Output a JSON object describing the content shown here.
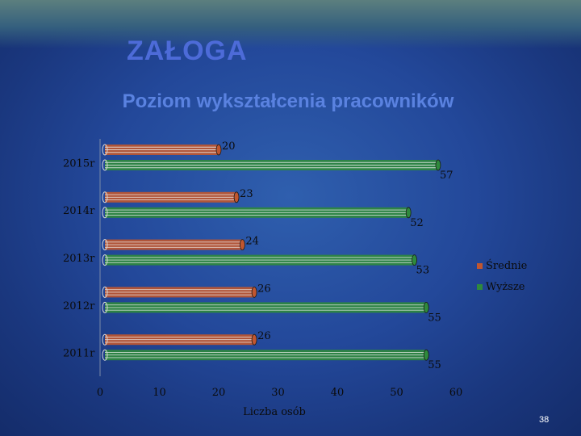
{
  "slide": {
    "title": "ZAŁOGA",
    "page_number": "38"
  },
  "colors": {
    "srednie": "#c0562f",
    "wyzsze": "#2f8a3c"
  },
  "chart_data": {
    "type": "bar",
    "orientation": "horizontal",
    "title": "Poziom wykształcenia pracowników",
    "xlabel": "Liczba osób",
    "ylabel": "",
    "categories": [
      "2015r",
      "2014r",
      "2013r",
      "2012r",
      "2011r"
    ],
    "series": [
      {
        "name": "Średnie",
        "values": [
          20,
          23,
          24,
          26,
          26
        ]
      },
      {
        "name": "Wyższe",
        "values": [
          57,
          52,
          53,
          55,
          55
        ]
      }
    ],
    "xlim": [
      0,
      60
    ],
    "xticks": [
      "0",
      "10",
      "20",
      "30",
      "40",
      "50",
      "60"
    ],
    "legend_position": "right",
    "grid": false
  }
}
